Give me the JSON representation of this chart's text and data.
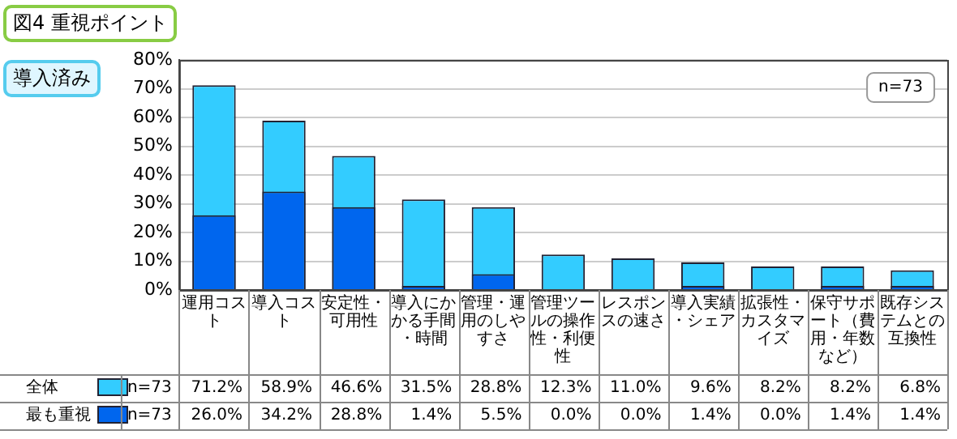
{
  "chart_data": {
    "type": "bar",
    "title": "図4 重視ポイント",
    "subtitle": "導入済み",
    "categories": [
      "運用コスト",
      "導入コスト",
      "安定性・可用性",
      "導入にかかる手間・時間",
      "管理・運用のしやすさ",
      "管理ツールの操作性・利便性",
      "レスポンスの速さ",
      "導入実績・シェア",
      "拡張性・カスタマイズ",
      "保守サポート（費用・年数など）",
      "既存システムとの互換性"
    ],
    "series": [
      {
        "name": "全体",
        "color": "#33ccff",
        "values": [
          71.2,
          58.9,
          46.6,
          31.5,
          28.8,
          12.3,
          11.0,
          9.6,
          8.2,
          8.2,
          6.8
        ],
        "value_labels": [
          "71.2%",
          "58.9%",
          "46.6%",
          "31.5%",
          "28.8%",
          "12.3%",
          "11.0%",
          "9.6%",
          "8.2%",
          "8.2%",
          "6.8%"
        ]
      },
      {
        "name": "最も重視",
        "color": "#0066ee",
        "values": [
          26.0,
          34.2,
          28.8,
          1.4,
          5.5,
          0.0,
          0.0,
          1.4,
          0.0,
          1.4,
          1.4
        ],
        "value_labels": [
          "26.0%",
          "34.2%",
          "28.8%",
          "1.4%",
          "5.5%",
          "0.0%",
          "0.0%",
          "1.4%",
          "0.0%",
          "1.4%",
          "1.4%"
        ]
      }
    ],
    "ylim": [
      0,
      80
    ],
    "yticks": [
      {
        "value": 0,
        "label": "0%"
      },
      {
        "value": 10,
        "label": "10%"
      },
      {
        "value": 20,
        "label": "20%"
      },
      {
        "value": 30,
        "label": "30%"
      },
      {
        "value": 40,
        "label": "40%"
      },
      {
        "value": 50,
        "label": "50%"
      },
      {
        "value": 60,
        "label": "60%"
      },
      {
        "value": 70,
        "label": "70%"
      },
      {
        "value": 80,
        "label": "80%"
      }
    ],
    "grid": "y",
    "legend": "bottom",
    "annotations": [
      "n=73",
      "n=73",
      "n=73"
    ]
  }
}
